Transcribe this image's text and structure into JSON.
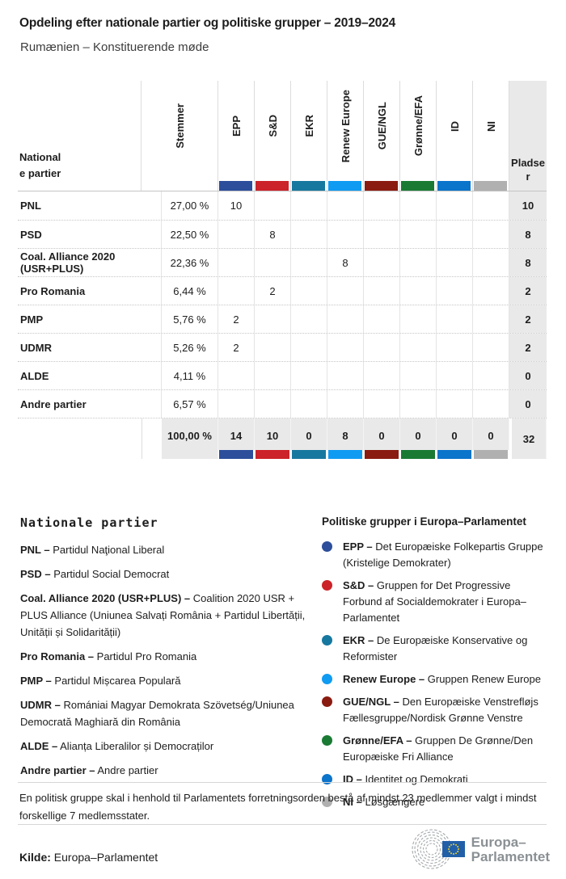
{
  "chart_data": {
    "type": "table",
    "title": "Opdeling efter nationale partier og politiske grupper – 2019–2024",
    "subtitle": "Rumænien – Konstituerende møde",
    "columns": [
      "Nationale partier",
      "Stemmer",
      "EPP",
      "S&D",
      "EKR",
      "Renew Europe",
      "GUE/NGL",
      "Grønne/EFA",
      "ID",
      "NI",
      "Pladser"
    ],
    "rows": [
      {
        "party": "PNL",
        "stemmer": "27,00 %",
        "values": [
          "10",
          "",
          "",
          "",
          "",
          "",
          "",
          ""
        ],
        "pladser": "10"
      },
      {
        "party": "PSD",
        "stemmer": "22,50 %",
        "values": [
          "",
          "8",
          "",
          "",
          "",
          "",
          "",
          ""
        ],
        "pladser": "8"
      },
      {
        "party": "Coal. Alliance 2020 (USR+PLUS)",
        "stemmer": "22,36 %",
        "values": [
          "",
          "",
          "",
          "8",
          "",
          "",
          "",
          ""
        ],
        "pladser": "8"
      },
      {
        "party": "Pro Romania",
        "stemmer": "6,44 %",
        "values": [
          "",
          "2",
          "",
          "",
          "",
          "",
          "",
          ""
        ],
        "pladser": "2"
      },
      {
        "party": "PMP",
        "stemmer": "5,76 %",
        "values": [
          "2",
          "",
          "",
          "",
          "",
          "",
          "",
          ""
        ],
        "pladser": "2"
      },
      {
        "party": "UDMR",
        "stemmer": "5,26 %",
        "values": [
          "2",
          "",
          "",
          "",
          "",
          "",
          "",
          ""
        ],
        "pladser": "2"
      },
      {
        "party": "ALDE",
        "stemmer": "4,11 %",
        "values": [
          "",
          "",
          "",
          "",
          "",
          "",
          "",
          ""
        ],
        "pladser": "0"
      },
      {
        "party": "Andre partier",
        "stemmer": "6,57 %",
        "values": [
          "",
          "",
          "",
          "",
          "",
          "",
          "",
          ""
        ],
        "pladser": "0"
      },
      {
        "party": "",
        "stemmer": "100,00 %",
        "values": [
          "14",
          "10",
          "0",
          "8",
          "0",
          "0",
          "0",
          "0"
        ],
        "pladser": "32",
        "total": true
      }
    ]
  },
  "table": {
    "label_header_lines": [
      "National",
      "e partier"
    ],
    "stemmer_label": "Stemmer",
    "pladser_lines": [
      "Pladse",
      "r"
    ]
  },
  "groups": [
    {
      "abbr": "EPP",
      "color": "#2c4e9b",
      "legend_bold": "EPP –",
      "legend_text": "Det Europæiske Folkepartis Gruppe (Kristelige Demokrater)"
    },
    {
      "abbr": "S&D",
      "color": "#cc2229",
      "legend_bold": "S&D –",
      "legend_text": "Gruppen for Det Progressive Forbund af Socialdemokrater i Europa–Parlamentet"
    },
    {
      "abbr": "EKR",
      "color": "#17789f",
      "legend_bold": "EKR –",
      "legend_text": "De Europæiske Konservative og Reformister"
    },
    {
      "abbr": "Renew Europe",
      "color": "#0f9bf2",
      "legend_bold": "Renew Europe –",
      "legend_text": "Gruppen Renew Europe"
    },
    {
      "abbr": "GUE/NGL",
      "color": "#8a1b10",
      "legend_bold": "GUE/NGL –",
      "legend_text": "Den Europæiske Venstrefløjs Fællesgruppe/Nordisk Grønne Venstre"
    },
    {
      "abbr": "Grønne/EFA",
      "color": "#1a7a33",
      "legend_bold": "Grønne/EFA –",
      "legend_text": "Gruppen De Grønne/Den Europæiske Fri Alliance"
    },
    {
      "abbr": "ID",
      "color": "#0b74cb",
      "legend_bold": "ID –",
      "legend_text": "Identitet og Demokrati"
    },
    {
      "abbr": "NI",
      "color": "#b0b0b0",
      "legend_bold": "NI –",
      "legend_text": "Løsgængere"
    }
  ],
  "legend_parties": {
    "heading": "Nationale partier",
    "items": [
      {
        "bold": "PNL –",
        "text": "Partidul Naţional Liberal"
      },
      {
        "bold": "PSD –",
        "text": "Partidul Social Democrat"
      },
      {
        "bold": "Coal. Alliance 2020 (USR+PLUS) –",
        "text": "Coalition 2020 USR + PLUS Alliance (Uniunea Salvați România + Partidul Libertății, Unității și Solidarității)"
      },
      {
        "bold": "Pro Romania –",
        "text": "Partidul Pro Romania"
      },
      {
        "bold": "PMP –",
        "text": "Partidul Mișcarea Populară"
      },
      {
        "bold": "UDMR –",
        "text": "Romániai Magyar Demokrata Szövetség/Uniunea Democrată Maghiară din România"
      },
      {
        "bold": "ALDE –",
        "text": "Alianța Liberalilor și Democraților"
      },
      {
        "bold": "Andre partier –",
        "text": "Andre partier"
      }
    ]
  },
  "legend_groups": {
    "heading": "Politiske grupper i Europa–Parlamentet"
  },
  "footer": {
    "note": "En politisk gruppe skal i henhold til Parlamentets forretningsorden bestå af mindst 23 medlemmer valgt i mindst forskellige 7 medlemsstater.",
    "source_label": "Kilde:",
    "source_text": "Europa–Parlamentet",
    "logo_line1": "Europa–",
    "logo_line2": "Parlamentet"
  }
}
